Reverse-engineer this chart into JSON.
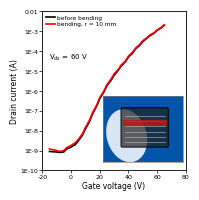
{
  "title": "",
  "xlabel": "Gate voltage (V)",
  "ylabel": "Drain current (A)",
  "xlim": [
    -20,
    80
  ],
  "ylim_log": [
    -10,
    -2
  ],
  "vds_label": "V$_{ds}$ = 60 V",
  "legend": [
    "before bending",
    "bending, r = 10 mm"
  ],
  "line_colors": [
    "black",
    "red"
  ],
  "background_color": "#ffffff",
  "curve_black_vg": [
    -15,
    -10,
    -8,
    -5,
    -3,
    0,
    3,
    5,
    8,
    10,
    13,
    15,
    18,
    20,
    23,
    25,
    28,
    30,
    33,
    35,
    38,
    40,
    43,
    45,
    48,
    50,
    53,
    55,
    58,
    60,
    63,
    65
  ],
  "curve_black_id": [
    9e-10,
    8.5e-10,
    8e-10,
    8.5e-10,
    1.2e-09,
    1.5e-09,
    2e-09,
    3e-09,
    6e-09,
    1.2e-08,
    3e-08,
    7e-08,
    1.8e-07,
    4e-07,
    9e-07,
    1.8e-06,
    3.5e-06,
    6e-06,
    1.1e-05,
    1.8e-05,
    3e-05,
    5e-05,
    8e-05,
    0.00013,
    0.0002,
    0.0003,
    0.00045,
    0.0006,
    0.0008,
    0.0011,
    0.0015,
    0.002
  ],
  "curve_red_vg": [
    -15,
    -10,
    -8,
    -5,
    -3,
    0,
    3,
    5,
    8,
    10,
    13,
    15,
    18,
    20,
    23,
    25,
    28,
    30,
    33,
    35,
    38,
    40,
    43,
    45,
    48,
    50,
    53,
    55,
    58,
    60,
    63,
    65
  ],
  "curve_red_id": [
    1.2e-09,
    1e-09,
    9e-10,
    1e-09,
    1.4e-09,
    1.8e-09,
    2.5e-09,
    3.5e-09,
    7e-09,
    1.4e-08,
    3.5e-08,
    8e-08,
    2e-07,
    4.5e-07,
    1e-06,
    2e-06,
    4e-06,
    7e-06,
    1.2e-05,
    2e-05,
    3.2e-05,
    5.5e-05,
    9e-05,
    0.00014,
    0.00022,
    0.00033,
    0.00048,
    0.00065,
    0.00085,
    0.00115,
    0.0016,
    0.0021
  ],
  "inset_color": "#0055aa",
  "yticks": [
    1e-10,
    1e-09,
    1e-08,
    1e-07,
    1e-06,
    1e-05,
    0.0001,
    0.001,
    0.01
  ],
  "ytick_labels": [
    "1E-10",
    "1E-9",
    "1E-8",
    "1E-7",
    "1E-6",
    "1E-5",
    "1E-4",
    "1E-3",
    "0.01"
  ]
}
